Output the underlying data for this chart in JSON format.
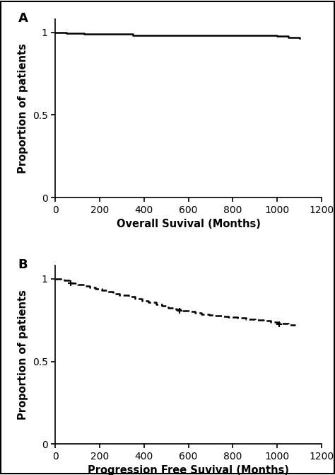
{
  "panel_A": {
    "label": "A",
    "xlabel": "Overall Suvival (Months)",
    "ylabel": "Proportion of patients",
    "xlim": [
      0,
      1200
    ],
    "ylim": [
      0,
      1.08
    ],
    "xticks": [
      0,
      200,
      400,
      600,
      800,
      1000,
      1200
    ],
    "yticks": [
      0,
      0.5,
      1
    ],
    "ytick_labels": [
      "0",
      "0.5",
      "1"
    ],
    "line_style": "solid",
    "line_color": "#000000",
    "line_width": 1.8,
    "km_times": [
      0,
      50,
      130,
      350,
      1000,
      1050,
      1100
    ],
    "km_surv": [
      1.0,
      0.995,
      0.988,
      0.98,
      0.975,
      0.968,
      0.965
    ]
  },
  "panel_B": {
    "label": "B",
    "xlabel": "Progression Free Suvival (Months)",
    "ylabel": "Proportion of patients",
    "xlim": [
      0,
      1200
    ],
    "ylim": [
      0,
      1.08
    ],
    "xticks": [
      0,
      200,
      400,
      600,
      800,
      1000,
      1200
    ],
    "yticks": [
      0,
      0.5,
      1
    ],
    "ytick_labels": [
      "0",
      "0.5",
      "1"
    ],
    "line_style": "dashed",
    "line_color": "#000000",
    "line_width": 1.8,
    "km_times": [
      0,
      40,
      70,
      100,
      130,
      155,
      180,
      210,
      235,
      260,
      290,
      330,
      360,
      390,
      420,
      455,
      480,
      510,
      545,
      570,
      600,
      630,
      660,
      695,
      720,
      750,
      780,
      820,
      860,
      900,
      940,
      970,
      1000,
      1020,
      1050,
      1080
    ],
    "km_surv": [
      1.0,
      0.99,
      0.975,
      0.965,
      0.955,
      0.948,
      0.94,
      0.93,
      0.92,
      0.91,
      0.9,
      0.89,
      0.878,
      0.868,
      0.858,
      0.845,
      0.835,
      0.825,
      0.815,
      0.808,
      0.8,
      0.793,
      0.786,
      0.78,
      0.775,
      0.772,
      0.768,
      0.762,
      0.755,
      0.75,
      0.745,
      0.738,
      0.732,
      0.728,
      0.722,
      0.718
    ],
    "censor_times": [
      70,
      560,
      1010
    ],
    "censor_surv": [
      0.975,
      0.805,
      0.725
    ]
  },
  "background_color": "#ffffff",
  "figure_border_color": "#000000"
}
